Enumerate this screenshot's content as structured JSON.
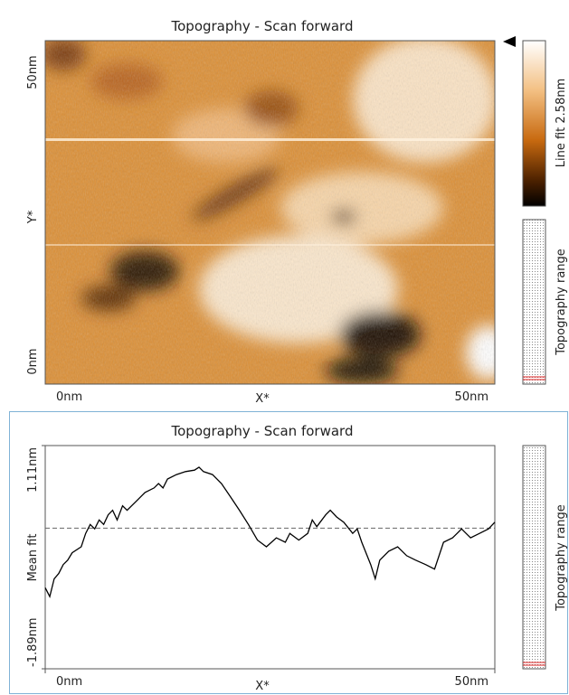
{
  "image_panel": {
    "title": "Topography - Scan forward",
    "y_label": "Y*",
    "x_label": "X*",
    "y_tick_labels": [
      "50nm",
      "0nm"
    ],
    "x_tick_labels": [
      "0nm",
      "50nm"
    ],
    "colorbar_label": "Line fit 2.58nm",
    "range_label": "Topography range"
  },
  "chart_data": {
    "type": "line",
    "title": "Topography - Scan forward",
    "xlabel": "X*",
    "ylabel": "Mean fit",
    "range_label": "Topography range",
    "x": [
      0,
      0.5,
      1,
      1.5,
      2,
      2.5,
      3,
      4,
      4.5,
      5,
      5.5,
      6,
      6.5,
      7,
      7.5,
      8,
      8.6,
      9.1,
      10.1,
      10.6,
      11.1,
      12.1,
      12.6,
      13.1,
      13.6,
      14.6,
      15.6,
      16.6,
      17.1,
      17.6,
      18.6,
      19.6,
      20.6,
      21.6,
      22.6,
      23.6,
      24.6,
      25.7,
      26.7,
      27.2,
      28.2,
      29.2,
      29.7,
      30.2,
      31.2,
      31.7,
      32.4,
      33.2,
      34.2,
      34.7,
      35.2,
      36.2,
      36.7,
      37.2,
      38.2,
      39.2,
      40.2,
      41.2,
      42.3,
      43.3,
      44.3,
      45.3,
      45.8,
      46.3,
      46.8,
      47.3,
      48.3,
      49.3,
      50
    ],
    "series": [
      {
        "color": "#000000",
        "values": [
          -0.8,
          -0.92,
          -0.68,
          -0.61,
          -0.49,
          -0.43,
          -0.33,
          -0.25,
          -0.07,
          0.05,
          -0.01,
          0.11,
          0.05,
          0.18,
          0.24,
          0.11,
          0.3,
          0.24,
          0.36,
          0.42,
          0.48,
          0.54,
          0.6,
          0.54,
          0.66,
          0.72,
          0.76,
          0.78,
          0.82,
          0.76,
          0.72,
          0.6,
          0.42,
          0.24,
          0.05,
          -0.16,
          -0.25,
          -0.13,
          -0.19,
          -0.07,
          -0.16,
          -0.07,
          0.11,
          0.02,
          0.18,
          0.24,
          0.15,
          0.08,
          -0.07,
          -0.01,
          -0.19,
          -0.49,
          -0.68,
          -0.43,
          -0.31,
          -0.25,
          -0.37,
          -0.43,
          -0.49,
          -0.55,
          -0.19,
          -0.13,
          -0.07,
          -0.01,
          -0.07,
          -0.13,
          -0.07,
          -0.01,
          0.08
        ]
      }
    ],
    "xlim": [
      0,
      50
    ],
    "xticks": [
      {
        "value": 0,
        "label": "0nm"
      },
      {
        "value": 50,
        "label": "50nm"
      }
    ],
    "ylim": [
      -1.89,
      1.11
    ],
    "yticks": [
      {
        "value": -1.89,
        "label": "-1.89nm"
      },
      {
        "value": 1.11,
        "label": "1.11nm"
      }
    ],
    "reference_line": 0
  }
}
